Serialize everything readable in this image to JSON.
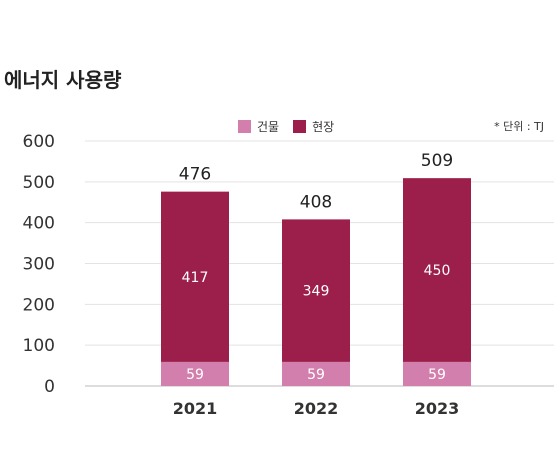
{
  "chart_data": {
    "type": "bar",
    "title": "에너지 사용량",
    "unit_note": "* 단위 : TJ",
    "categories": [
      "2021",
      "2022",
      "2023"
    ],
    "series": [
      {
        "name": "건물",
        "color": "#d37fad",
        "values": [
          59,
          59,
          59
        ]
      },
      {
        "name": "현장",
        "color": "#9b1f4a",
        "values": [
          417,
          349,
          450
        ]
      }
    ],
    "totals": [
      476,
      408,
      509
    ],
    "ylim": [
      0,
      600
    ],
    "yticks": [
      0,
      100,
      200,
      300,
      400,
      500,
      600
    ],
    "legend_position": "top-center",
    "grid": true
  }
}
